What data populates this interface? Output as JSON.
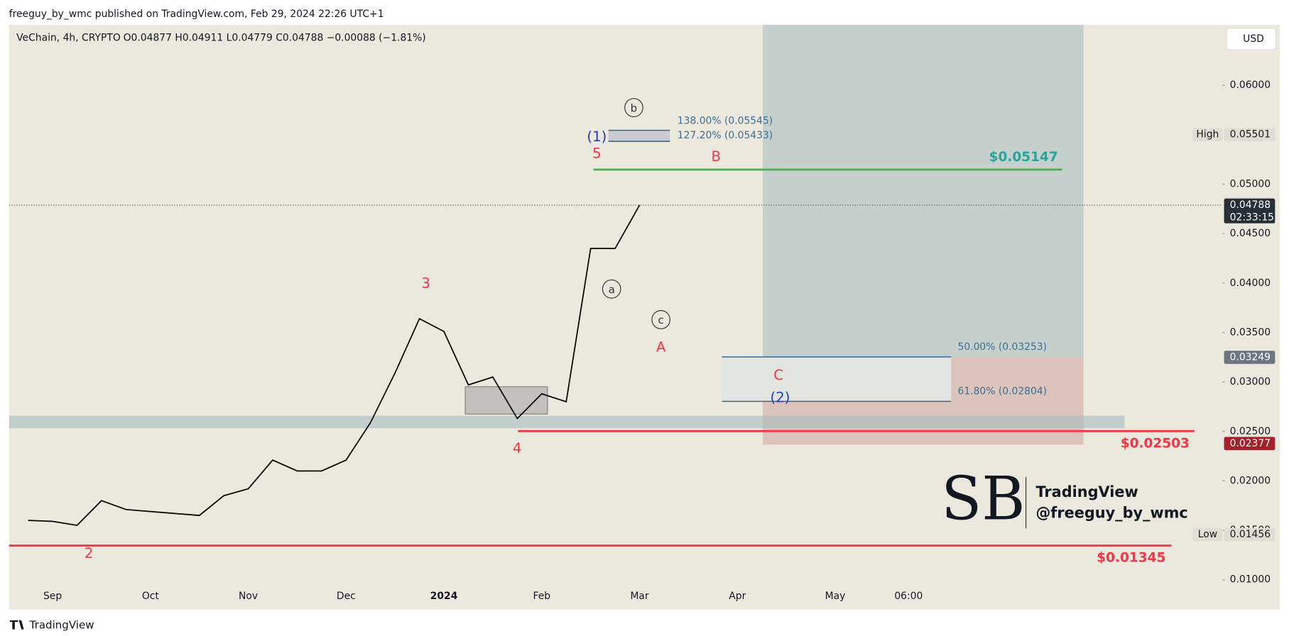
{
  "header": "freeguy_by_wmc published on TradingView.com, Feb 29, 2024 22:26 UTC+1",
  "footer_brand": "TradingView",
  "chart_data": {
    "type": "line",
    "title": "VeChain, 4h, CRYPTO",
    "ohlc_text": "O0.04877  H0.04911  L0.04779  C0.04788  −0.00088 (−1.81%)",
    "currency": "USD",
    "color": "#000000",
    "categories": [
      null,
      "Sep",
      null,
      null,
      null,
      "Oct",
      null,
      null,
      null,
      "Nov",
      null,
      null,
      null,
      "Dec",
      null,
      null,
      null,
      "2024",
      null,
      null,
      null,
      "Feb",
      null,
      null,
      null,
      "Mar",
      null,
      null,
      null,
      "Apr",
      null,
      null,
      null,
      "May",
      null,
      null,
      "06:00",
      null,
      null,
      null,
      null,
      null,
      null,
      null,
      null,
      null,
      null,
      null,
      null
    ],
    "values": [
      0.016,
      0.0159,
      0.0155,
      0.018,
      0.0171,
      0.0169,
      0.0167,
      0.0165,
      0.0185,
      0.0192,
      0.0221,
      0.021,
      0.021,
      0.0221,
      0.0259,
      0.0309,
      0.0364,
      0.0351,
      0.0297,
      0.0305,
      0.0263,
      0.0288,
      0.028,
      0.0435,
      0.0435,
      0.04788,
      null,
      null,
      null,
      null,
      null,
      null,
      null,
      null,
      null,
      null,
      null,
      null,
      null,
      null,
      null,
      null,
      null,
      null,
      null,
      null,
      null,
      null,
      null
    ],
    "ylim": [
      0.00699,
      0.06611
    ],
    "yticks": [
      {
        "value": 0.06,
        "label": "0.06000"
      },
      {
        "value": 0.05,
        "label": "0.05000"
      },
      {
        "value": 0.045,
        "label": "0.04500"
      },
      {
        "value": 0.04,
        "label": "0.04000"
      },
      {
        "value": 0.035,
        "label": "0.03500"
      },
      {
        "value": 0.03,
        "label": "0.03000"
      },
      {
        "value": 0.025,
        "label": "0.02500"
      },
      {
        "value": 0.02,
        "label": "0.02000"
      },
      {
        "value": 0.015,
        "label": "0.01500"
      },
      {
        "value": 0.01,
        "label": "0.01000"
      }
    ],
    "grid": false,
    "price_badges": [
      {
        "label": "High",
        "value": 0.05501
      },
      {
        "value": 0.04788,
        "countdown": "02:33:15"
      },
      {
        "value": 0.03249
      },
      {
        "value": 0.02377
      },
      {
        "label": "Low",
        "value": 0.01456
      }
    ],
    "levels": [
      {
        "value": 0.05147,
        "label": "$0.05147",
        "color": "#4caf50"
      },
      {
        "value": 0.02503,
        "label": "$0.02503",
        "color": "#f23645"
      },
      {
        "value": 0.01345,
        "label": "$0.01345",
        "color": "#f23645"
      }
    ],
    "fib_levels": [
      {
        "value": 0.05545,
        "label": "138.00% (0.05545)"
      },
      {
        "value": 0.05433,
        "label": "127.20% (0.05433)"
      },
      {
        "value": 0.03253,
        "label": "50.00% (0.03253)"
      },
      {
        "value": 0.02804,
        "label": "61.80% (0.02804)"
      }
    ],
    "wave_labels": [
      "3",
      "4",
      "5",
      "2",
      "(1)",
      "(2)",
      "a",
      "b",
      "c",
      "A",
      "B",
      "C"
    ],
    "watermark": {
      "logo": "SB",
      "brand": "TradingView",
      "author": "@freeguy_by_wmc"
    }
  }
}
